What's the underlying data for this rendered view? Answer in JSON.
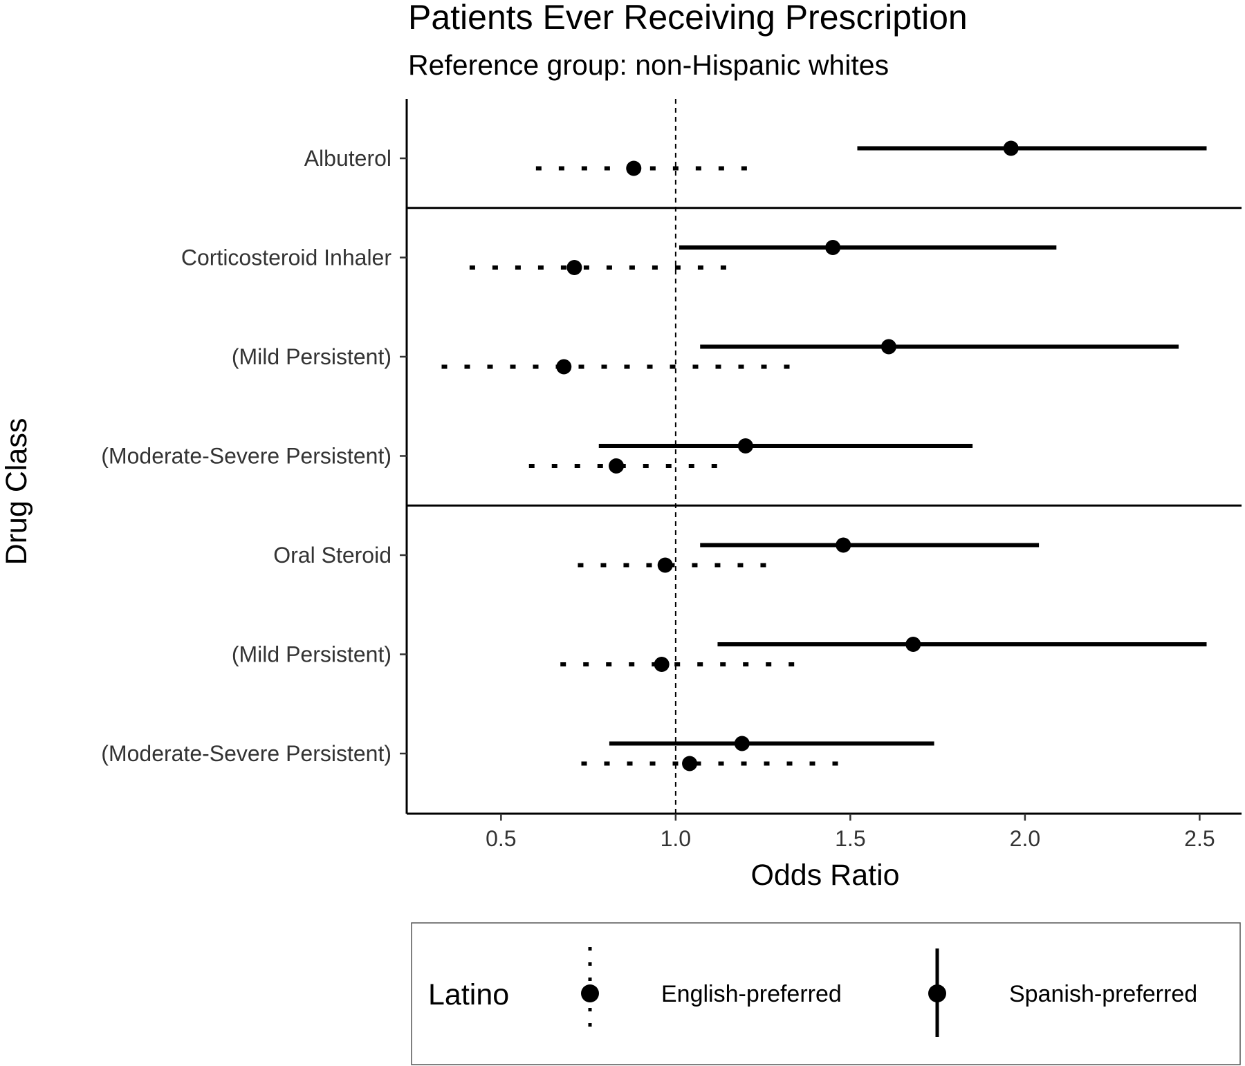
{
  "chart_data": {
    "type": "forest",
    "title": "Patients Ever Receiving Prescription",
    "subtitle": "Reference group: non-Hispanic whites",
    "xlabel": "Odds Ratio",
    "ylabel": "Drug Class",
    "xlim": [
      0.23,
      2.62
    ],
    "xticks": [
      0.5,
      1.0,
      1.5,
      2.0,
      2.5
    ],
    "xtick_labels": [
      "0.5",
      "1.0",
      "1.5",
      "2.0",
      "2.5"
    ],
    "reference_line": 1.0,
    "categories": [
      "Albuterol",
      "Corticosteroid Inhaler",
      "(Mild Persistent)",
      "(Moderate-Severe Persistent)",
      "Oral Steroid",
      "(Mild Persistent)",
      "(Moderate-Severe Persistent)"
    ],
    "group_separators_after": [
      0,
      3
    ],
    "series": [
      {
        "name": "Spanish-preferred",
        "line_style": "solid",
        "estimates": [
          1.96,
          1.45,
          1.61,
          1.2,
          1.48,
          1.68,
          1.19
        ],
        "lower": [
          1.52,
          1.01,
          1.07,
          0.78,
          1.07,
          1.12,
          0.81
        ],
        "upper": [
          2.52,
          2.09,
          2.44,
          1.85,
          2.04,
          2.52,
          1.74
        ]
      },
      {
        "name": "English-preferred",
        "line_style": "dotted",
        "estimates": [
          0.88,
          0.71,
          0.68,
          0.83,
          0.97,
          0.96,
          1.04
        ],
        "lower": [
          0.6,
          0.41,
          0.33,
          0.58,
          0.72,
          0.67,
          0.73
        ],
        "upper": [
          1.23,
          1.17,
          1.36,
          1.14,
          1.27,
          1.36,
          1.49
        ]
      }
    ],
    "legend": {
      "title": "Latino",
      "position": "bottom",
      "entries": [
        "English-preferred",
        "Spanish-preferred"
      ]
    },
    "grid": false
  }
}
